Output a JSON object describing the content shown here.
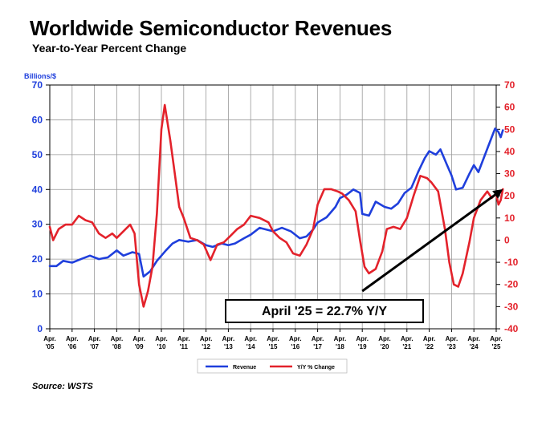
{
  "title": "Worldwide Semiconductor Revenues",
  "subtitle": "Year-to-Year Percent Change",
  "source": "Source: WSTS",
  "chart_data": {
    "type": "line",
    "left_axis": {
      "label": "Billions/$",
      "ylim": [
        0,
        70
      ],
      "ticks": [
        0,
        10,
        20,
        30,
        40,
        50,
        60,
        70
      ],
      "color": "#1f3fdc"
    },
    "right_axis": {
      "ylim": [
        -40,
        70
      ],
      "ticks": [
        -40,
        -30,
        -20,
        -10,
        0,
        10,
        20,
        30,
        40,
        50,
        60,
        70
      ],
      "color": "#e3222b"
    },
    "x_ticks": [
      {
        "year": 2005,
        "label": "'05"
      },
      {
        "year": 2006,
        "label": "'06"
      },
      {
        "year": 2007,
        "label": "'07"
      },
      {
        "year": 2008,
        "label": "'08"
      },
      {
        "year": 2009,
        "label": "'09"
      },
      {
        "year": 2010,
        "label": "'10"
      },
      {
        "year": 2011,
        "label": "'11"
      },
      {
        "year": 2012,
        "label": "'12"
      },
      {
        "year": 2013,
        "label": "'13"
      },
      {
        "year": 2014,
        "label": "'14"
      },
      {
        "year": 2015,
        "label": "'15"
      },
      {
        "year": 2016,
        "label": "'16"
      },
      {
        "year": 2017,
        "label": "'17"
      },
      {
        "year": 2018,
        "label": "'18"
      },
      {
        "year": 2019,
        "label": "'19"
      },
      {
        "year": 2020,
        "label": "'20"
      },
      {
        "year": 2021,
        "label": "'21"
      },
      {
        "year": 2022,
        "label": "'22"
      },
      {
        "year": 2023,
        "label": "'23"
      },
      {
        "year": 2024,
        "label": "'24"
      },
      {
        "year": 2025,
        "label": "'25"
      }
    ],
    "x_tick_prefix": "Apr.",
    "x_range": [
      2005,
      2025
    ],
    "grid": true,
    "legend_position": "bottom",
    "series": [
      {
        "name": "Revenue",
        "axis": "left",
        "color": "#1f3fdc",
        "points": [
          [
            2005.0,
            18
          ],
          [
            2005.3,
            18
          ],
          [
            2005.6,
            19.5
          ],
          [
            2006.0,
            19
          ],
          [
            2006.4,
            20
          ],
          [
            2006.8,
            21
          ],
          [
            2007.2,
            20
          ],
          [
            2007.6,
            20.5
          ],
          [
            2008.0,
            22.5
          ],
          [
            2008.3,
            21
          ],
          [
            2008.7,
            22
          ],
          [
            2009.0,
            21.5
          ],
          [
            2009.2,
            15
          ],
          [
            2009.5,
            16.5
          ],
          [
            2009.8,
            19.5
          ],
          [
            2010.2,
            22.5
          ],
          [
            2010.5,
            24.5
          ],
          [
            2010.8,
            25.5
          ],
          [
            2011.2,
            25
          ],
          [
            2011.6,
            25.5
          ],
          [
            2012.0,
            24
          ],
          [
            2012.3,
            23.5
          ],
          [
            2012.7,
            24.5
          ],
          [
            2013.0,
            24
          ],
          [
            2013.3,
            24.5
          ],
          [
            2013.7,
            26
          ],
          [
            2014.0,
            27
          ],
          [
            2014.4,
            29
          ],
          [
            2014.7,
            28.5
          ],
          [
            2015.0,
            28
          ],
          [
            2015.4,
            29
          ],
          [
            2015.8,
            28
          ],
          [
            2016.2,
            26
          ],
          [
            2016.5,
            26.5
          ],
          [
            2016.8,
            28.5
          ],
          [
            2017.0,
            30.5
          ],
          [
            2017.4,
            32
          ],
          [
            2017.8,
            35
          ],
          [
            2018.0,
            37.5
          ],
          [
            2018.3,
            38.5
          ],
          [
            2018.6,
            40
          ],
          [
            2018.9,
            39
          ],
          [
            2019.0,
            33
          ],
          [
            2019.3,
            32.5
          ],
          [
            2019.6,
            36.5
          ],
          [
            2020.0,
            35
          ],
          [
            2020.3,
            34.5
          ],
          [
            2020.6,
            36
          ],
          [
            2020.9,
            39
          ],
          [
            2021.2,
            40.5
          ],
          [
            2021.5,
            45
          ],
          [
            2021.8,
            49
          ],
          [
            2022.0,
            51
          ],
          [
            2022.3,
            50
          ],
          [
            2022.5,
            51.5
          ],
          [
            2022.8,
            47
          ],
          [
            2023.0,
            44
          ],
          [
            2023.2,
            40
          ],
          [
            2023.5,
            40.5
          ],
          [
            2023.8,
            44.5
          ],
          [
            2024.0,
            47
          ],
          [
            2024.2,
            45
          ],
          [
            2024.5,
            50
          ],
          [
            2024.8,
            55
          ],
          [
            2024.95,
            57.5
          ],
          [
            2025.1,
            56.5
          ],
          [
            2025.2,
            55
          ],
          [
            2025.3,
            57
          ]
        ]
      },
      {
        "name": "Y/Y % Change",
        "axis": "right",
        "color": "#e3222b",
        "points": [
          [
            2005.0,
            6
          ],
          [
            2005.15,
            0
          ],
          [
            2005.4,
            5
          ],
          [
            2005.7,
            7
          ],
          [
            2006.0,
            7
          ],
          [
            2006.3,
            11
          ],
          [
            2006.6,
            9
          ],
          [
            2006.9,
            8
          ],
          [
            2007.2,
            3
          ],
          [
            2007.5,
            1
          ],
          [
            2007.8,
            3
          ],
          [
            2008.0,
            1
          ],
          [
            2008.3,
            4
          ],
          [
            2008.6,
            7
          ],
          [
            2008.8,
            3
          ],
          [
            2009.0,
            -20
          ],
          [
            2009.2,
            -30
          ],
          [
            2009.4,
            -23
          ],
          [
            2009.6,
            -12
          ],
          [
            2009.8,
            12
          ],
          [
            2010.0,
            50
          ],
          [
            2010.15,
            61
          ],
          [
            2010.4,
            45
          ],
          [
            2010.6,
            30
          ],
          [
            2010.8,
            15
          ],
          [
            2011.0,
            10
          ],
          [
            2011.3,
            1
          ],
          [
            2011.6,
            0
          ],
          [
            2011.9,
            -2
          ],
          [
            2012.2,
            -9
          ],
          [
            2012.5,
            -2
          ],
          [
            2012.8,
            -1
          ],
          [
            2013.1,
            2
          ],
          [
            2013.4,
            5
          ],
          [
            2013.7,
            7
          ],
          [
            2014.0,
            11
          ],
          [
            2014.4,
            10
          ],
          [
            2014.8,
            8
          ],
          [
            2015.0,
            4
          ],
          [
            2015.3,
            1
          ],
          [
            2015.6,
            -1
          ],
          [
            2015.9,
            -6
          ],
          [
            2016.2,
            -7
          ],
          [
            2016.5,
            -2
          ],
          [
            2016.8,
            5
          ],
          [
            2017.0,
            16
          ],
          [
            2017.3,
            23
          ],
          [
            2017.6,
            23
          ],
          [
            2017.9,
            22
          ],
          [
            2018.1,
            21
          ],
          [
            2018.4,
            18
          ],
          [
            2018.7,
            13
          ],
          [
            2018.9,
            0
          ],
          [
            2019.1,
            -12
          ],
          [
            2019.3,
            -15
          ],
          [
            2019.6,
            -13
          ],
          [
            2019.9,
            -5
          ],
          [
            2020.1,
            5
          ],
          [
            2020.4,
            6
          ],
          [
            2020.7,
            5
          ],
          [
            2021.0,
            10
          ],
          [
            2021.3,
            20
          ],
          [
            2021.6,
            29
          ],
          [
            2021.9,
            28
          ],
          [
            2022.1,
            26
          ],
          [
            2022.4,
            22
          ],
          [
            2022.7,
            5
          ],
          [
            2022.9,
            -10
          ],
          [
            2023.1,
            -20
          ],
          [
            2023.3,
            -21
          ],
          [
            2023.5,
            -15
          ],
          [
            2023.8,
            -1
          ],
          [
            2024.0,
            10
          ],
          [
            2024.3,
            18
          ],
          [
            2024.6,
            22
          ],
          [
            2024.8,
            19
          ],
          [
            2025.0,
            21
          ],
          [
            2025.1,
            16
          ],
          [
            2025.2,
            18
          ],
          [
            2025.3,
            23
          ]
        ]
      }
    ],
    "annotations": [
      {
        "type": "text_box",
        "text": "April '25 = 22.7% Y/Y"
      },
      {
        "type": "arrow",
        "axis": "right",
        "from": [
          2019.0,
          -23
        ],
        "to": [
          2025.3,
          23
        ]
      }
    ]
  }
}
